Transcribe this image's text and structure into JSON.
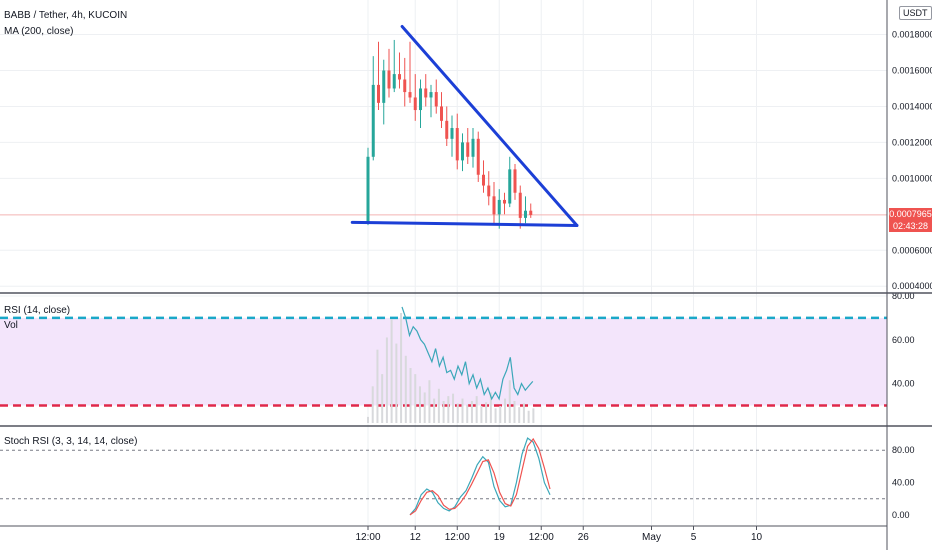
{
  "header": {
    "symbol_title": "BABB / Tether, 4h, KUCOIN",
    "ma_label": "MA (200, close)",
    "currency_badge": "USDT"
  },
  "price_panel": {
    "last_price": "0.0007965",
    "countdown": "02:43:28",
    "last_price_value": 0.0007965,
    "price_box_color": "#ef5350"
  },
  "rsi_panel": {
    "label": "RSI (14, close)",
    "vol_label": "Vol"
  },
  "stoch_panel": {
    "label": "Stoch RSI (3, 3, 14, 14, close)"
  },
  "colors": {
    "up": "#26a69a",
    "down": "#ef5350",
    "drawing": "#1c3fd6",
    "rsi_line": "#3ba7b9",
    "rsi_band": "#f3e5fb",
    "rsi_upper": "#1aa8c8",
    "rsi_lower": "#e0284a",
    "stoch_k": "#3ba7b9",
    "stoch_d": "#ef5350",
    "volume": "#d8d9dc"
  },
  "chart_data": [
    {
      "type": "candlestick",
      "title": "BABB / Tether, 4h, KUCOIN",
      "y_ticks": [
        "0.0018000",
        "0.0016000",
        "0.0014000",
        "0.0012000",
        "0.0010000",
        "0.0006000",
        "0.0004000"
      ],
      "y_tick_values": [
        0.0018,
        0.0016,
        0.0014,
        0.0012,
        0.001,
        0.0006,
        0.0004
      ],
      "ylim": [
        0.00039,
        0.00197
      ],
      "x_ticks": [
        {
          "label": "12:00",
          "bar": 0
        },
        {
          "label": "12",
          "bar": 9
        },
        {
          "label": "12:00",
          "bar": 17
        },
        {
          "label": "19",
          "bar": 25
        },
        {
          "label": "12:00",
          "bar": 33
        },
        {
          "label": "26",
          "bar": 41
        },
        {
          "label": "May",
          "bar": 54
        },
        {
          "label": "5",
          "bar": 62
        },
        {
          "label": "10",
          "bar": 74
        }
      ],
      "ohlc": [
        [
          0.00075,
          0.00117,
          0.00074,
          0.00112
        ],
        [
          0.00112,
          0.00168,
          0.0011,
          0.00152
        ],
        [
          0.00152,
          0.00176,
          0.00138,
          0.00142
        ],
        [
          0.00142,
          0.00166,
          0.0013,
          0.0016
        ],
        [
          0.0016,
          0.00172,
          0.00145,
          0.0015
        ],
        [
          0.0015,
          0.00177,
          0.00148,
          0.00158
        ],
        [
          0.00158,
          0.0017,
          0.0015,
          0.00155
        ],
        [
          0.00155,
          0.00167,
          0.0014,
          0.00148
        ],
        [
          0.00148,
          0.00176,
          0.00142,
          0.00145
        ],
        [
          0.00145,
          0.00158,
          0.00132,
          0.00138
        ],
        [
          0.00138,
          0.00155,
          0.00128,
          0.0015
        ],
        [
          0.0015,
          0.00158,
          0.0014,
          0.00145
        ],
        [
          0.00145,
          0.00152,
          0.00134,
          0.00148
        ],
        [
          0.00148,
          0.00155,
          0.00136,
          0.0014
        ],
        [
          0.0014,
          0.00148,
          0.00128,
          0.00132
        ],
        [
          0.00132,
          0.0014,
          0.00118,
          0.00122
        ],
        [
          0.00122,
          0.00135,
          0.00112,
          0.00128
        ],
        [
          0.00128,
          0.00136,
          0.00105,
          0.0011
        ],
        [
          0.0011,
          0.00125,
          0.00104,
          0.0012
        ],
        [
          0.0012,
          0.00128,
          0.00108,
          0.00112
        ],
        [
          0.00112,
          0.00128,
          0.00106,
          0.00122
        ],
        [
          0.00122,
          0.00126,
          0.00098,
          0.00102
        ],
        [
          0.00102,
          0.0011,
          0.00092,
          0.00096
        ],
        [
          0.00096,
          0.00104,
          0.00085,
          0.0009
        ],
        [
          0.0009,
          0.00098,
          0.00074,
          0.0008
        ],
        [
          0.0008,
          0.00094,
          0.00072,
          0.00088
        ],
        [
          0.00088,
          0.00092,
          0.0008,
          0.00086
        ],
        [
          0.00086,
          0.00112,
          0.00084,
          0.00105
        ],
        [
          0.00105,
          0.00108,
          0.00088,
          0.00092
        ],
        [
          0.00092,
          0.00096,
          0.00072,
          0.00078
        ],
        [
          0.00078,
          0.0009,
          0.00075,
          0.00082
        ],
        [
          0.00082,
          0.00086,
          0.00078,
          0.0007965
        ]
      ],
      "annotations": {
        "descending_line": {
          "from": {
            "bar": 6.5,
            "price": 0.001845
          },
          "to": {
            "bar": 39.8,
            "price": 0.000738
          }
        },
        "support_line": {
          "from": {
            "bar": -3,
            "price": 0.000755
          },
          "to": {
            "bar": 39.8,
            "price": 0.000738
          }
        }
      }
    },
    {
      "type": "line",
      "title": "RSI (14, close)",
      "y_ticks": [
        "80.00",
        "60.00",
        "40.00"
      ],
      "y_tick_values": [
        80,
        60,
        40
      ],
      "ylim": [
        22,
        80
      ],
      "upper_band": 70,
      "lower_band": 30,
      "values": [
        75,
        70,
        62,
        66,
        64,
        60,
        58,
        54,
        50,
        56,
        48,
        52,
        45,
        46,
        42,
        48,
        44,
        50,
        40,
        44,
        38,
        42,
        35,
        38,
        33,
        36,
        33,
        42,
        46,
        52,
        38,
        35,
        40,
        37,
        39,
        41
      ],
      "volume": [
        5,
        30,
        60,
        40,
        70,
        85,
        65,
        90,
        55,
        45,
        40,
        30,
        25,
        35,
        20,
        28,
        18,
        22,
        24,
        16,
        20,
        15,
        18,
        22,
        14,
        17,
        25,
        12,
        14,
        20,
        35,
        18,
        13,
        16,
        10,
        12
      ]
    },
    {
      "type": "line",
      "title": "Stoch RSI (3, 3, 14, 14, close)",
      "y_ticks": [
        "80.00",
        "40.00",
        "0.00"
      ],
      "y_tick_values": [
        80,
        40,
        0
      ],
      "ylim": [
        -10,
        105
      ],
      "dotted_levels": [
        80,
        20
      ],
      "series": [
        {
          "name": "K",
          "values": [
            0,
            8,
            25,
            32,
            28,
            15,
            8,
            5,
            10,
            22,
            30,
            45,
            62,
            72,
            65,
            35,
            18,
            10,
            12,
            40,
            75,
            95,
            90,
            70,
            40,
            25
          ]
        },
        {
          "name": "D",
          "values": [
            0,
            5,
            18,
            28,
            30,
            24,
            12,
            7,
            8,
            15,
            25,
            38,
            52,
            66,
            68,
            52,
            28,
            14,
            11,
            25,
            55,
            85,
            94,
            82,
            58,
            32
          ]
        }
      ]
    }
  ]
}
